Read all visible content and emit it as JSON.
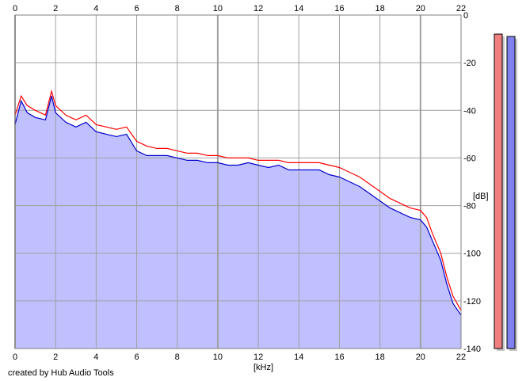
{
  "footer": {
    "credit": "created by Hub Audio Tools"
  },
  "colors": {
    "background": "#ffffff",
    "plot_fill": "#c0c0ff",
    "left_channel": "#ff0000",
    "right_channel": "#0000cc",
    "grid": "#a0a0a0",
    "meter_left": "#f08080",
    "meter_right": "#8080f0"
  },
  "chart_data": {
    "type": "line",
    "xlabel": "[kHz]",
    "ylabel": "[dB]",
    "xlim": [
      0,
      22
    ],
    "ylim": [
      -140,
      0
    ],
    "x_ticks": [
      0,
      2,
      4,
      6,
      8,
      10,
      12,
      14,
      16,
      18,
      20,
      22
    ],
    "y_ticks": [
      0,
      -20,
      -40,
      -60,
      -80,
      -100,
      -120,
      -140
    ],
    "grid": true,
    "filled_under_curve": true,
    "series": [
      {
        "color": "#ff0000",
        "x": [
          0,
          0.3,
          0.6,
          1.0,
          1.5,
          1.8,
          2.0,
          2.5,
          3.0,
          3.5,
          4.0,
          4.5,
          5.0,
          5.5,
          6.0,
          6.5,
          7.0,
          7.5,
          8.0,
          8.5,
          9.0,
          9.5,
          10.0,
          10.5,
          11.0,
          11.5,
          12.0,
          12.5,
          13.0,
          13.5,
          14.0,
          14.5,
          15.0,
          15.5,
          16.0,
          16.5,
          17.0,
          17.5,
          18.0,
          18.5,
          19.0,
          19.5,
          20.0,
          20.3,
          20.6,
          21.0,
          21.3,
          21.6,
          22.0
        ],
        "y": [
          -42,
          -34,
          -38,
          -40,
          -42,
          -32,
          -38,
          -42,
          -44,
          -42,
          -46,
          -47,
          -48,
          -47,
          -53,
          -55,
          -56,
          -56,
          -57,
          -58,
          -58,
          -59,
          -59,
          -60,
          -60,
          -60,
          -61,
          -61,
          -61,
          -62,
          -62,
          -62,
          -62,
          -63,
          -64,
          -66,
          -68,
          -71,
          -74,
          -77,
          -79,
          -81,
          -82,
          -85,
          -92,
          -100,
          -110,
          -118,
          -124
        ]
      },
      {
        "color": "#0000cc",
        "x": [
          0,
          0.3,
          0.6,
          1.0,
          1.5,
          1.8,
          2.0,
          2.5,
          3.0,
          3.5,
          4.0,
          4.5,
          5.0,
          5.5,
          6.0,
          6.5,
          7.0,
          7.5,
          8.0,
          8.5,
          9.0,
          9.5,
          10.0,
          10.5,
          11.0,
          11.5,
          12.0,
          12.5,
          13.0,
          13.5,
          14.0,
          14.5,
          15.0,
          15.5,
          16.0,
          16.5,
          17.0,
          17.5,
          18.0,
          18.5,
          19.0,
          19.5,
          20.0,
          20.3,
          20.6,
          21.0,
          21.3,
          21.6,
          22.0
        ],
        "y": [
          -46,
          -36,
          -41,
          -43,
          -44,
          -34,
          -41,
          -45,
          -47,
          -45,
          -49,
          -50,
          -51,
          -50,
          -57,
          -59,
          -59,
          -59,
          -60,
          -61,
          -61,
          -62,
          -62,
          -63,
          -63,
          -62,
          -63,
          -64,
          -63,
          -65,
          -65,
          -65,
          -65,
          -67,
          -68,
          -70,
          -72,
          -75,
          -78,
          -81,
          -83,
          -85,
          -86,
          -89,
          -95,
          -103,
          -113,
          -121,
          -126
        ]
      }
    ],
    "meters": [
      {
        "color": "#f08080",
        "min_db": -140,
        "max_db": 0,
        "top_db": -8
      },
      {
        "color": "#8080f0",
        "min_db": -140,
        "max_db": 0,
        "top_db": -9
      }
    ]
  }
}
